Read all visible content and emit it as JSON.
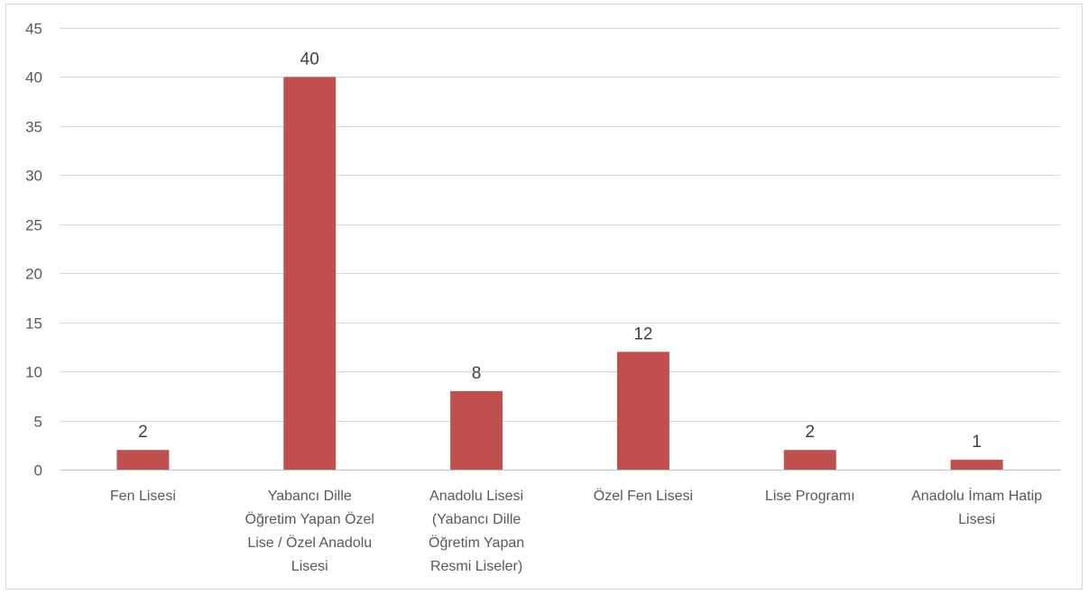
{
  "chart_data": {
    "type": "bar",
    "title": "",
    "xlabel": "",
    "ylabel": "",
    "categories": [
      [
        "Fen Lisesi"
      ],
      [
        "Yabancı Dille",
        "Öğretim Yapan Özel",
        "Lise / Özel Anadolu",
        "Lisesi"
      ],
      [
        "Anadolu Lisesi",
        "(Yabancı Dille",
        "Öğretim Yapan",
        "Resmi Liseler)"
      ],
      [
        "Özel Fen Lisesi"
      ],
      [
        "Lise Programı"
      ],
      [
        "Anadolu İmam Hatip",
        "Lisesi"
      ]
    ],
    "values": [
      2,
      40,
      8,
      12,
      2,
      1
    ],
    "data_labels": [
      "2",
      "40",
      "8",
      "12",
      "2",
      "1"
    ],
    "ylim": [
      0,
      45
    ],
    "yticks": [
      0,
      5,
      10,
      15,
      20,
      25,
      30,
      35,
      40,
      45
    ],
    "grid": true,
    "legend": "none",
    "bar_color": "#c0504d",
    "grid_color": "#d9d9d9"
  }
}
